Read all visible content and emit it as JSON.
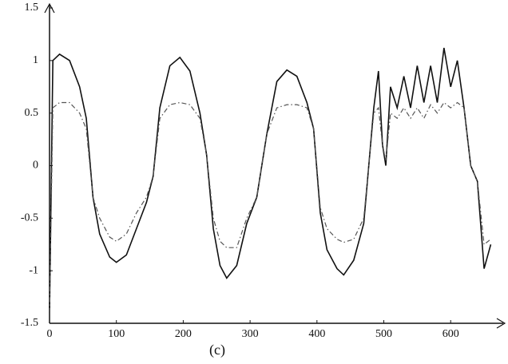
{
  "chart_data": {
    "type": "line",
    "xlabel": "(c)",
    "x": [
      0,
      5,
      15,
      30,
      45,
      55,
      65,
      75,
      90,
      100,
      115,
      130,
      145,
      155,
      165,
      180,
      195,
      210,
      225,
      235,
      245,
      255,
      265,
      280,
      295,
      310,
      325,
      340,
      355,
      370,
      385,
      395,
      405,
      415,
      430,
      440,
      455,
      470,
      485,
      492,
      498,
      503,
      510,
      520,
      530,
      540,
      550,
      560,
      570,
      580,
      590,
      600,
      610,
      620,
      630,
      640,
      650,
      660
    ],
    "series": [
      {
        "color": "#111111",
        "style": "solid",
        "values": [
          -1.4,
          1.0,
          1.06,
          1.0,
          0.75,
          0.45,
          -0.3,
          -0.65,
          -0.87,
          -0.92,
          -0.85,
          -0.6,
          -0.35,
          -0.1,
          0.55,
          0.95,
          1.03,
          0.9,
          0.5,
          0.1,
          -0.6,
          -0.95,
          -1.07,
          -0.95,
          -0.55,
          -0.3,
          0.3,
          0.8,
          0.91,
          0.85,
          0.6,
          0.35,
          -0.45,
          -0.8,
          -0.98,
          -1.04,
          -0.9,
          -0.55,
          0.55,
          0.9,
          0.2,
          0.0,
          0.75,
          0.55,
          0.85,
          0.55,
          0.95,
          0.6,
          0.95,
          0.6,
          1.12,
          0.75,
          1.0,
          0.55,
          0.0,
          -0.15,
          -0.98,
          -0.75
        ]
      },
      {
        "color": "#555555",
        "style": "dashdot",
        "values": [
          -1.4,
          0.55,
          0.6,
          0.6,
          0.5,
          0.35,
          -0.3,
          -0.5,
          -0.68,
          -0.72,
          -0.65,
          -0.45,
          -0.3,
          -0.1,
          0.45,
          0.58,
          0.6,
          0.58,
          0.45,
          0.1,
          -0.5,
          -0.72,
          -0.78,
          -0.78,
          -0.5,
          -0.3,
          0.3,
          0.55,
          0.58,
          0.58,
          0.55,
          0.35,
          -0.4,
          -0.6,
          -0.7,
          -0.73,
          -0.7,
          -0.5,
          0.5,
          0.55,
          0.2,
          0.05,
          0.5,
          0.45,
          0.55,
          0.45,
          0.55,
          0.45,
          0.58,
          0.5,
          0.6,
          0.55,
          0.6,
          0.55,
          0.0,
          -0.15,
          -0.75,
          -0.7
        ]
      }
    ],
    "xlim": [
      0,
      675
    ],
    "ylim": [
      -1.5,
      1.5
    ],
    "xticks": [
      0,
      100,
      200,
      300,
      400,
      500,
      600
    ],
    "yticks": [
      -1.5,
      -1,
      -0.5,
      0,
      0.5,
      1,
      1.5
    ]
  }
}
